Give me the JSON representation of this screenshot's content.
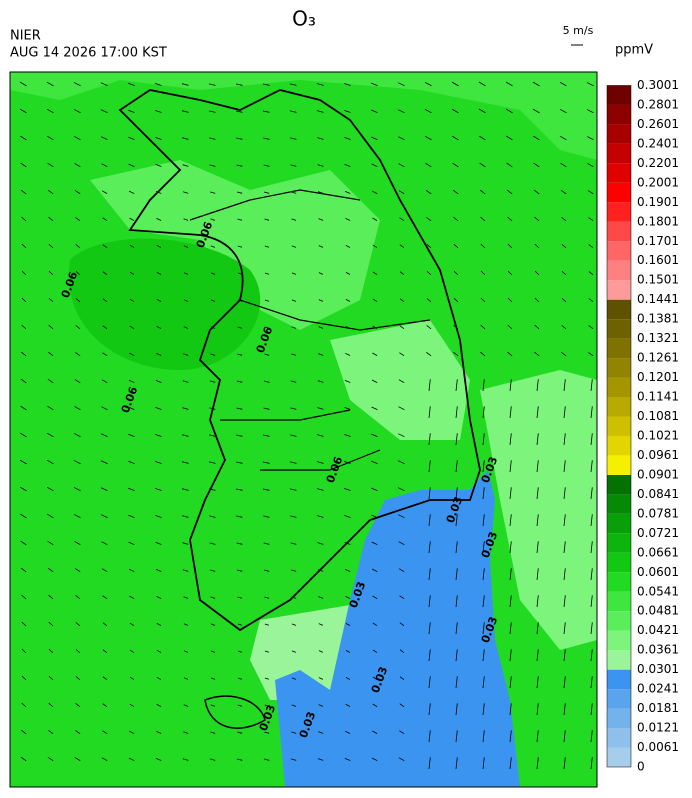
{
  "header": {
    "title": "O₃",
    "source": "NIER",
    "timestamp": "AUG 14 2026 17:00 KST",
    "wind_scale": "5 m/s"
  },
  "colorbar": {
    "unit": "ppmV",
    "levels": [
      0,
      0.0061,
      0.0121,
      0.0181,
      0.0241,
      0.0301,
      0.0361,
      0.0421,
      0.0481,
      0.0541,
      0.0601,
      0.0661,
      0.0721,
      0.0781,
      0.0841,
      0.0901,
      0.0961,
      0.1021,
      0.1081,
      0.1141,
      0.1201,
      0.1261,
      0.1321,
      0.1381,
      0.1441,
      0.1501,
      0.1601,
      0.1701,
      0.1801,
      0.1901,
      0.2001,
      0.2201,
      0.2401,
      0.2601,
      0.2801,
      0.3001
    ],
    "colors": [
      "#a6cdea",
      "#8fc0ec",
      "#74b2ec",
      "#5aa4ee",
      "#3b95f0",
      "#9af59a",
      "#7df57d",
      "#5aef5a",
      "#3ee63e",
      "#22da22",
      "#12c812",
      "#0cb40c",
      "#08a008",
      "#058a05",
      "#037203",
      "#f5f000",
      "#e3d600",
      "#ccc000",
      "#b8aa00",
      "#a59600",
      "#928400",
      "#807200",
      "#6e6200",
      "#5e5200",
      "#ff9a9a",
      "#ff8080",
      "#ff6666",
      "#ff4848",
      "#ff2020",
      "#ff0000",
      "#e00000",
      "#c40000",
      "#a80000",
      "#8c0000",
      "#6e0000"
    ]
  },
  "map": {
    "contour_labels": [
      "0.06",
      "0.06",
      "0.06",
      "0.06",
      "0.06",
      "0.03",
      "0.03",
      "0.03",
      "0.03",
      "0.03",
      "0.03",
      "0.03",
      "0.03"
    ]
  }
}
